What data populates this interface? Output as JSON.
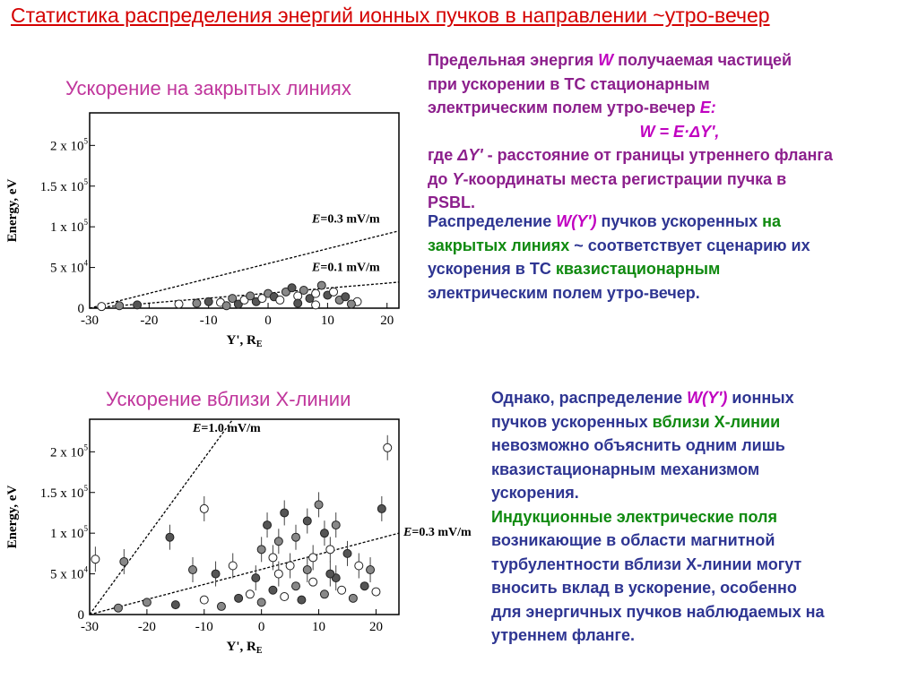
{
  "slide": {
    "title": "Статистика распределения энергий ионных пучков в направлении ~утро-вечер",
    "top_section": {
      "heading": "Ускорение на закрытых линиях",
      "para1": {
        "l1a": "Предельная энергия ",
        "l1b": "W",
        "l1c": " получаемая частицей",
        "l2": "при ускорении в ТС стационарным",
        "l3a": "электрическим полем утро-вечер ",
        "l3b": "E:",
        "formula": "W = E·ΔY',",
        "l5a": "где ",
        "l5b": "ΔY'",
        "l5c": " - расстояние от границы утреннего фланга",
        "l6a": "до ",
        "l6b": "Y",
        "l6c": "-координаты места регистрации пучка в",
        "l7": "PSBL."
      },
      "para2": {
        "l1a": "Распределение ",
        "l1b": "W(Y')",
        "l1c": " пучков ускоренных ",
        "l1d": "на",
        "l2a": "закрытых линиях",
        "l2b": " ~ соответствует сценарию их",
        "l3a": "ускорения в ТС ",
        "l3b": "квазистационарным",
        "l4": "электрическим полем утро-вечер."
      }
    },
    "bottom_section": {
      "heading": "Ускорение вблизи X-линии",
      "para1": {
        "l1a": "Однако, распределение ",
        "l1b": "W(Y')",
        "l1c": " ионных",
        "l2a": "пучков ускоренных ",
        "l2b": "вблизи X-линии",
        "l3": "невозможно объяснить одним лишь",
        "l4": "квазистационарным механизмом",
        "l5": "ускорения."
      },
      "para2": {
        "l1": "Индукционные электрические поля",
        "l2": "возникающие в области магнитной",
        "l3": "турбулентности вблизи X-линии могут",
        "l4": "вносить вклад в ускорение, особенно",
        "l5": "для энергичных пучков наблюдаемых на",
        "l6": "утреннем фланге."
      }
    }
  },
  "colors": {
    "title": "#d40000",
    "heading": "#c0369c",
    "navy": "#2e3592",
    "purple": "#8c1f8c",
    "green": "#108a10",
    "magenta": "#c000c0"
  },
  "chart_data": [
    {
      "type": "scatter",
      "xlabel": "Y', R_E",
      "ylabel": "Energy, eV",
      "xlim": [
        -30,
        22
      ],
      "ylim": [
        0,
        240000
      ],
      "x_ticks": [
        "-30",
        "-20",
        "-10",
        "0",
        "10",
        "20"
      ],
      "y_ticks": [
        "0",
        "5 x 10^4",
        "1 x 10^5",
        "1.5 x 10^5",
        "2 x 10^5"
      ],
      "lines": [
        {
          "label": "E=0.3 mV/m",
          "x": [
            -30,
            22
          ],
          "y": [
            0,
            95000
          ]
        },
        {
          "label": "E=0.1 mV/m",
          "x": [
            -30,
            22
          ],
          "y": [
            0,
            32000
          ]
        }
      ],
      "points": [
        {
          "x": -28,
          "y": 2000
        },
        {
          "x": -25,
          "y": 3000
        },
        {
          "x": -22,
          "y": 4000
        },
        {
          "x": -15,
          "y": 5000
        },
        {
          "x": -12,
          "y": 6000
        },
        {
          "x": -10,
          "y": 8000
        },
        {
          "x": -8,
          "y": 7000
        },
        {
          "x": -6,
          "y": 12000
        },
        {
          "x": -5,
          "y": 5000
        },
        {
          "x": -4,
          "y": 10000
        },
        {
          "x": -3,
          "y": 15000
        },
        {
          "x": -2,
          "y": 8000
        },
        {
          "x": -1,
          "y": 12000
        },
        {
          "x": 0,
          "y": 18000
        },
        {
          "x": 1,
          "y": 14000
        },
        {
          "x": 2,
          "y": 10000
        },
        {
          "x": 3,
          "y": 20000
        },
        {
          "x": 4,
          "y": 25000
        },
        {
          "x": 5,
          "y": 15000
        },
        {
          "x": 6,
          "y": 22000
        },
        {
          "x": 7,
          "y": 12000
        },
        {
          "x": 8,
          "y": 18000
        },
        {
          "x": 9,
          "y": 28000
        },
        {
          "x": 10,
          "y": 16000
        },
        {
          "x": 11,
          "y": 20000
        },
        {
          "x": 12,
          "y": 10000
        },
        {
          "x": 13,
          "y": 14000
        },
        {
          "x": 15,
          "y": 8000
        },
        {
          "x": -7,
          "y": 3000
        },
        {
          "x": 5,
          "y": 6000
        },
        {
          "x": 8,
          "y": 4000
        },
        {
          "x": 14,
          "y": 5000
        }
      ]
    },
    {
      "type": "scatter",
      "xlabel": "Y', R_E",
      "ylabel": "Energy, eV",
      "xlim": [
        -30,
        24
      ],
      "ylim": [
        0,
        240000
      ],
      "x_ticks": [
        "-30",
        "-20",
        "-10",
        "0",
        "10",
        "20"
      ],
      "y_ticks": [
        "0",
        "5 x 10^4",
        "1 x 10^5",
        "1.5 x 10^5",
        "2 x 10^5"
      ],
      "lines": [
        {
          "label": "E=1.0 mV/m",
          "x": [
            -30,
            -5
          ],
          "y": [
            0,
            240000
          ]
        },
        {
          "label": "E=0.3 mV/m",
          "x": [
            -30,
            24
          ],
          "y": [
            0,
            100000
          ]
        }
      ],
      "points": [
        {
          "x": -29,
          "y": 68000
        },
        {
          "x": -24,
          "y": 65000
        },
        {
          "x": -16,
          "y": 95000
        },
        {
          "x": -10,
          "y": 130000
        },
        {
          "x": -12,
          "y": 55000
        },
        {
          "x": -8,
          "y": 50000
        },
        {
          "x": -5,
          "y": 60000
        },
        {
          "x": 0,
          "y": 80000
        },
        {
          "x": 1,
          "y": 110000
        },
        {
          "x": 2,
          "y": 70000
        },
        {
          "x": 3,
          "y": 90000
        },
        {
          "x": 4,
          "y": 125000
        },
        {
          "x": 5,
          "y": 60000
        },
        {
          "x": 6,
          "y": 95000
        },
        {
          "x": 8,
          "y": 115000
        },
        {
          "x": 9,
          "y": 70000
        },
        {
          "x": 10,
          "y": 135000
        },
        {
          "x": 11,
          "y": 100000
        },
        {
          "x": 12,
          "y": 80000
        },
        {
          "x": 13,
          "y": 110000
        },
        {
          "x": 15,
          "y": 75000
        },
        {
          "x": 17,
          "y": 60000
        },
        {
          "x": 19,
          "y": 55000
        },
        {
          "x": 21,
          "y": 130000
        },
        {
          "x": 22,
          "y": 205000
        },
        {
          "x": -20,
          "y": 15000
        },
        {
          "x": -15,
          "y": 12000
        },
        {
          "x": -10,
          "y": 18000
        },
        {
          "x": -7,
          "y": 10000
        },
        {
          "x": -4,
          "y": 20000
        },
        {
          "x": -2,
          "y": 25000
        },
        {
          "x": 0,
          "y": 15000
        },
        {
          "x": 2,
          "y": 30000
        },
        {
          "x": 4,
          "y": 22000
        },
        {
          "x": 6,
          "y": 35000
        },
        {
          "x": 7,
          "y": 18000
        },
        {
          "x": 9,
          "y": 40000
        },
        {
          "x": 11,
          "y": 25000
        },
        {
          "x": 13,
          "y": 45000
        },
        {
          "x": 14,
          "y": 30000
        },
        {
          "x": 16,
          "y": 20000
        },
        {
          "x": 18,
          "y": 35000
        },
        {
          "x": 20,
          "y": 28000
        },
        {
          "x": -25,
          "y": 8000
        },
        {
          "x": -1,
          "y": 45000
        },
        {
          "x": 3,
          "y": 50000
        },
        {
          "x": 8,
          "y": 55000
        },
        {
          "x": 12,
          "y": 50000
        }
      ]
    }
  ]
}
